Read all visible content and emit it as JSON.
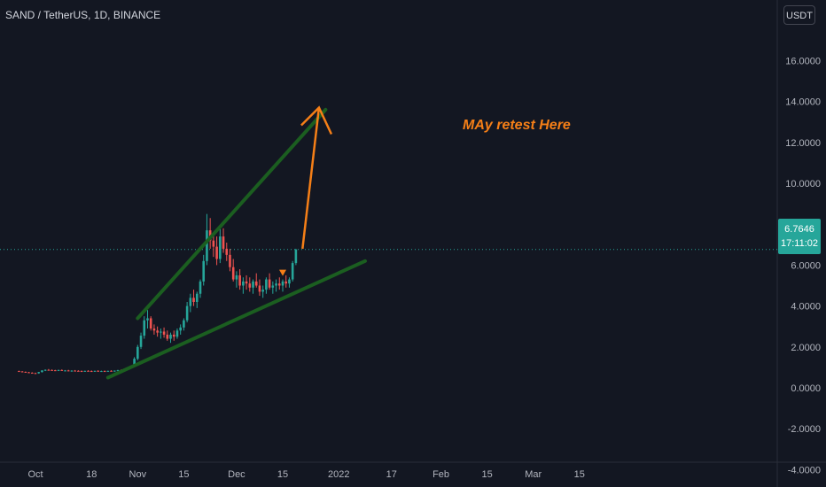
{
  "header": {
    "title": "SAND / TetherUS, 1D, BINANCE",
    "currency": "USDT"
  },
  "price_label": {
    "price": "6.7646",
    "countdown": "17:11:02"
  },
  "annotation": {
    "text": "MAy retest Here"
  },
  "colors": {
    "background": "#131722",
    "up": "#26a69a",
    "down": "#ef5350",
    "trendline": "#1b5e20",
    "arrow": "#f57f17",
    "axis_text": "#b2b5be"
  },
  "chart_data": {
    "type": "candlestick",
    "title": "SAND / TetherUS, 1D, BINANCE",
    "y_axis": {
      "label": "USDT",
      "range": [
        -4.0,
        16.0
      ],
      "ticks": [
        "16.0000",
        "14.0000",
        "12.0000",
        "10.0000",
        "8.0000",
        "6.0000",
        "4.0000",
        "2.0000",
        "0.0000",
        "-2.0000",
        "-4.0000"
      ]
    },
    "x_axis": {
      "ticks": [
        "Oct",
        "18",
        "Nov",
        "15",
        "Dec",
        "15",
        "2022",
        "17",
        "Feb",
        "15",
        "Mar",
        "15"
      ]
    },
    "x_start": "2021-09-26",
    "last_price": 6.7646,
    "candles": [
      [
        0.82,
        0.84,
        0.78,
        0.8
      ],
      [
        0.8,
        0.82,
        0.76,
        0.78
      ],
      [
        0.78,
        0.8,
        0.74,
        0.76
      ],
      [
        0.76,
        0.78,
        0.72,
        0.74
      ],
      [
        0.74,
        0.76,
        0.7,
        0.72
      ],
      [
        0.72,
        0.74,
        0.68,
        0.71
      ],
      [
        0.71,
        0.78,
        0.69,
        0.77
      ],
      [
        0.77,
        0.86,
        0.75,
        0.85
      ],
      [
        0.85,
        0.9,
        0.82,
        0.88
      ],
      [
        0.88,
        0.92,
        0.85,
        0.87
      ],
      [
        0.87,
        0.9,
        0.84,
        0.86
      ],
      [
        0.86,
        0.88,
        0.82,
        0.85
      ],
      [
        0.85,
        0.89,
        0.82,
        0.87
      ],
      [
        0.87,
        0.9,
        0.83,
        0.84
      ],
      [
        0.84,
        0.87,
        0.8,
        0.85
      ],
      [
        0.85,
        0.88,
        0.81,
        0.82
      ],
      [
        0.82,
        0.86,
        0.79,
        0.84
      ],
      [
        0.84,
        0.87,
        0.81,
        0.83
      ],
      [
        0.83,
        0.86,
        0.8,
        0.82
      ],
      [
        0.82,
        0.85,
        0.79,
        0.81
      ],
      [
        0.81,
        0.84,
        0.78,
        0.83
      ],
      [
        0.83,
        0.86,
        0.8,
        0.82
      ],
      [
        0.82,
        0.85,
        0.79,
        0.8
      ],
      [
        0.8,
        0.84,
        0.78,
        0.83
      ],
      [
        0.83,
        0.86,
        0.8,
        0.81
      ],
      [
        0.81,
        0.84,
        0.78,
        0.82
      ],
      [
        0.82,
        0.85,
        0.79,
        0.8
      ],
      [
        0.8,
        0.84,
        0.78,
        0.83
      ],
      [
        0.83,
        0.86,
        0.8,
        0.82
      ],
      [
        0.82,
        0.85,
        0.79,
        0.84
      ],
      [
        0.84,
        0.88,
        0.82,
        0.86
      ],
      [
        0.86,
        0.9,
        0.83,
        0.85
      ],
      [
        0.85,
        0.92,
        0.83,
        0.9
      ],
      [
        0.9,
        1.0,
        0.88,
        0.97
      ],
      [
        0.97,
        1.1,
        0.95,
        1.05
      ],
      [
        1.05,
        1.5,
        1.02,
        1.42
      ],
      [
        1.42,
        2.1,
        1.35,
        2.0
      ],
      [
        2.0,
        2.7,
        1.9,
        2.55
      ],
      [
        2.55,
        3.5,
        2.4,
        3.3
      ],
      [
        3.3,
        3.8,
        2.9,
        3.4
      ],
      [
        3.4,
        3.5,
        2.8,
        2.9
      ],
      [
        2.9,
        3.1,
        2.6,
        2.8
      ],
      [
        2.8,
        3.0,
        2.5,
        2.7
      ],
      [
        2.7,
        2.9,
        2.4,
        2.75
      ],
      [
        2.75,
        2.95,
        2.45,
        2.6
      ],
      [
        2.6,
        2.8,
        2.3,
        2.4
      ],
      [
        2.4,
        2.7,
        2.2,
        2.6
      ],
      [
        2.6,
        2.8,
        2.3,
        2.5
      ],
      [
        2.5,
        2.9,
        2.4,
        2.8
      ],
      [
        2.8,
        3.1,
        2.6,
        2.95
      ],
      [
        2.95,
        3.4,
        2.8,
        3.3
      ],
      [
        3.3,
        4.2,
        3.2,
        4.0
      ],
      [
        4.0,
        4.6,
        3.7,
        4.4
      ],
      [
        4.4,
        4.8,
        4.0,
        4.2
      ],
      [
        4.2,
        4.7,
        3.9,
        4.6
      ],
      [
        4.6,
        5.3,
        4.4,
        5.2
      ],
      [
        5.2,
        6.5,
        5.0,
        6.2
      ],
      [
        6.2,
        8.5,
        6.0,
        7.7
      ],
      [
        7.7,
        8.3,
        6.8,
        7.2
      ],
      [
        7.2,
        7.6,
        6.4,
        6.9
      ],
      [
        6.9,
        7.4,
        6.0,
        6.3
      ],
      [
        6.3,
        7.8,
        6.1,
        7.4
      ],
      [
        7.4,
        7.8,
        6.6,
        6.8
      ],
      [
        6.8,
        7.1,
        6.2,
        6.5
      ],
      [
        6.5,
        6.8,
        5.7,
        5.9
      ],
      [
        5.9,
        6.3,
        5.2,
        5.3
      ],
      [
        5.3,
        5.7,
        4.9,
        5.5
      ],
      [
        5.5,
        5.8,
        4.8,
        5.0
      ],
      [
        5.0,
        5.4,
        4.6,
        5.2
      ],
      [
        5.2,
        5.5,
        4.8,
        5.1
      ],
      [
        5.1,
        5.4,
        4.7,
        4.9
      ],
      [
        4.9,
        5.3,
        4.6,
        5.2
      ],
      [
        5.2,
        5.6,
        4.9,
        5.0
      ],
      [
        5.0,
        5.3,
        4.5,
        4.7
      ],
      [
        4.7,
        5.0,
        4.4,
        4.8
      ],
      [
        4.8,
        5.4,
        4.6,
        5.3
      ],
      [
        5.3,
        5.6,
        4.8,
        4.9
      ],
      [
        4.9,
        5.2,
        4.6,
        5.0
      ],
      [
        5.0,
        5.3,
        4.7,
        5.1
      ],
      [
        5.1,
        5.4,
        4.8,
        5.0
      ],
      [
        5.0,
        5.3,
        4.7,
        5.2
      ],
      [
        5.2,
        5.5,
        4.9,
        5.1
      ],
      [
        5.1,
        5.4,
        4.9,
        5.3
      ],
      [
        5.3,
        6.2,
        5.2,
        6.1
      ],
      [
        6.1,
        6.8,
        6.0,
        6.76
      ]
    ],
    "drawings": [
      {
        "type": "trendline",
        "color": "#1b5e20",
        "from": [
          "2021-11-01",
          3.4
        ],
        "to": [
          "2021-12-28",
          13.6
        ]
      },
      {
        "type": "trendline",
        "color": "#1b5e20",
        "from": [
          "2021-10-23",
          0.5
        ],
        "to": [
          "2022-01-09",
          6.2
        ]
      },
      {
        "type": "arrow",
        "color": "#f57f17",
        "from": [
          "2021-12-21",
          6.8
        ],
        "to": [
          "2021-12-26",
          13.7
        ]
      },
      {
        "type": "marker",
        "shape": "triangle-down",
        "color": "#f57f17",
        "at": [
          "2021-12-15",
          5.6
        ]
      }
    ]
  }
}
